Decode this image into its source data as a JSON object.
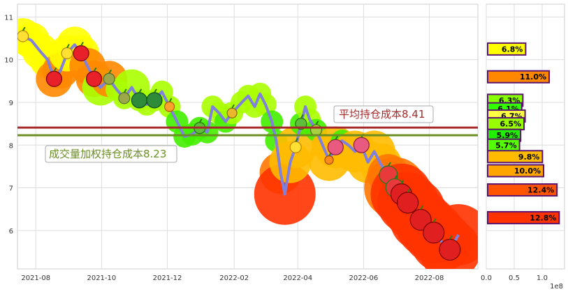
{
  "chart_data": [
    {
      "type": "line",
      "title": "",
      "xlabel": "",
      "ylabel": "",
      "x_ticks": [
        "2021-08",
        "2021-10",
        "2021-12",
        "2022-02",
        "2022-04",
        "2022-06",
        "2022-08"
      ],
      "y_ticks": [
        6,
        7,
        8,
        9,
        10,
        11
      ],
      "xlim": [
        "2021-07-15",
        "2022-09-15"
      ],
      "ylim": [
        5.1,
        11.3
      ],
      "grid": true,
      "colors": {
        "line": "#8080dd",
        "avg_line": "#a52a2a",
        "vw_line": "#6b8e23"
      },
      "price": [
        [
          "2021-07-20",
          10.55
        ],
        [
          "2021-07-28",
          10.45
        ],
        [
          "2021-08-05",
          10.2
        ],
        [
          "2021-08-12",
          10.0
        ],
        [
          "2021-08-18",
          9.55
        ],
        [
          "2021-08-24",
          9.75
        ],
        [
          "2021-08-30",
          10.15
        ],
        [
          "2021-09-06",
          10.35
        ],
        [
          "2021-09-12",
          10.15
        ],
        [
          "2021-09-18",
          9.85
        ],
        [
          "2021-09-24",
          9.55
        ],
        [
          "2021-09-30",
          9.35
        ],
        [
          "2021-10-08",
          9.55
        ],
        [
          "2021-10-15",
          9.3
        ],
        [
          "2021-10-22",
          9.1
        ],
        [
          "2021-10-29",
          9.35
        ],
        [
          "2021-11-05",
          9.05
        ],
        [
          "2021-11-12",
          8.95
        ],
        [
          "2021-11-19",
          9.05
        ],
        [
          "2021-11-26",
          9.25
        ],
        [
          "2021-12-03",
          8.9
        ],
        [
          "2021-12-10",
          8.55
        ],
        [
          "2021-12-17",
          8.2
        ],
        [
          "2021-12-24",
          8.25
        ],
        [
          "2021-12-31",
          8.4
        ],
        [
          "2022-01-07",
          8.3
        ],
        [
          "2022-01-12",
          8.9
        ],
        [
          "2022-01-18",
          8.75
        ],
        [
          "2022-01-24",
          8.55
        ],
        [
          "2022-01-30",
          8.75
        ],
        [
          "2022-02-08",
          9.0
        ],
        [
          "2022-02-14",
          9.15
        ],
        [
          "2022-02-20",
          8.9
        ],
        [
          "2022-02-25",
          9.2
        ],
        [
          "2022-03-02",
          8.95
        ],
        [
          "2022-03-08",
          8.55
        ],
        [
          "2022-03-12",
          8.1
        ],
        [
          "2022-03-16",
          7.35
        ],
        [
          "2022-03-20",
          6.85
        ],
        [
          "2022-03-25",
          7.6
        ],
        [
          "2022-03-30",
          7.95
        ],
        [
          "2022-04-04",
          8.5
        ],
        [
          "2022-04-08",
          8.9
        ],
        [
          "2022-04-12",
          8.6
        ],
        [
          "2022-04-18",
          8.35
        ],
        [
          "2022-04-24",
          8.0
        ],
        [
          "2022-04-30",
          7.65
        ],
        [
          "2022-05-06",
          7.95
        ],
        [
          "2022-05-12",
          8.1
        ],
        [
          "2022-05-18",
          8.0
        ],
        [
          "2022-05-24",
          7.85
        ],
        [
          "2022-05-30",
          8.0
        ],
        [
          "2022-06-05",
          7.6
        ],
        [
          "2022-06-11",
          7.85
        ],
        [
          "2022-06-17",
          7.55
        ],
        [
          "2022-06-24",
          7.3
        ],
        [
          "2022-06-30",
          7.0
        ],
        [
          "2022-07-06",
          6.85
        ],
        [
          "2022-07-12",
          6.65
        ],
        [
          "2022-07-18",
          6.5
        ],
        [
          "2022-07-24",
          6.25
        ],
        [
          "2022-07-30",
          6.1
        ],
        [
          "2022-08-05",
          5.95
        ],
        [
          "2022-08-12",
          5.75
        ],
        [
          "2022-08-20",
          5.55
        ],
        [
          "2022-08-28",
          5.9
        ]
      ],
      "lines": [
        {
          "value": 8.41,
          "label": "平均持仓成本8.41",
          "color": "#a52a2a"
        },
        {
          "value": 8.23,
          "label": "成交量加权持仓成本8.23",
          "color": "#6b8e23"
        }
      ]
    },
    {
      "type": "bar",
      "orientation": "horizontal",
      "title": "",
      "x_ticks": [
        "0.0",
        "0.5",
        "1.0"
      ],
      "x_multiplier_label": "1e8",
      "xlim": [
        0,
        1.4
      ],
      "ylim": [
        5.1,
        11.3
      ],
      "bars": [
        {
          "price": 10.25,
          "value": 0.68,
          "label": "6.8%",
          "color": "#ffff00"
        },
        {
          "price": 9.6,
          "value": 1.1,
          "label": "11.0%",
          "color": "#ff8800"
        },
        {
          "price": 9.05,
          "value": 0.63,
          "label": "6.3%",
          "color": "#88ff00"
        },
        {
          "price": 8.85,
          "value": 0.61,
          "label": "6.1%",
          "color": "#33ff00"
        },
        {
          "price": 8.68,
          "value": 0.67,
          "label": "6.7%",
          "color": "#ffff44"
        },
        {
          "price": 8.5,
          "value": 0.65,
          "label": "6.5%",
          "color": "#99ff00"
        },
        {
          "price": 8.23,
          "value": 0.59,
          "label": "5.9%",
          "color": "#22ee00"
        },
        {
          "price": 8.0,
          "value": 0.57,
          "label": "5.7%",
          "color": "#55ff00"
        },
        {
          "price": 7.73,
          "value": 0.98,
          "label": "9.8%",
          "color": "#ffbb00"
        },
        {
          "price": 7.4,
          "value": 1.0,
          "label": "10.0%",
          "color": "#ffa500"
        },
        {
          "price": 6.95,
          "value": 1.24,
          "label": "12.4%",
          "color": "#ff5500"
        },
        {
          "price": 6.3,
          "value": 1.28,
          "label": "12.8%",
          "color": "#ff3300"
        }
      ]
    }
  ],
  "fruit_icons": [
    "banana-icon",
    "strawberry-icon",
    "pear-icon",
    "watermelon-icon",
    "orange-icon",
    "peapod-icon",
    "pineapple-icon",
    "kiwi-icon",
    "carrot-icon",
    "radish-icon",
    "watermelon-slice-icon",
    "apple-icon"
  ]
}
